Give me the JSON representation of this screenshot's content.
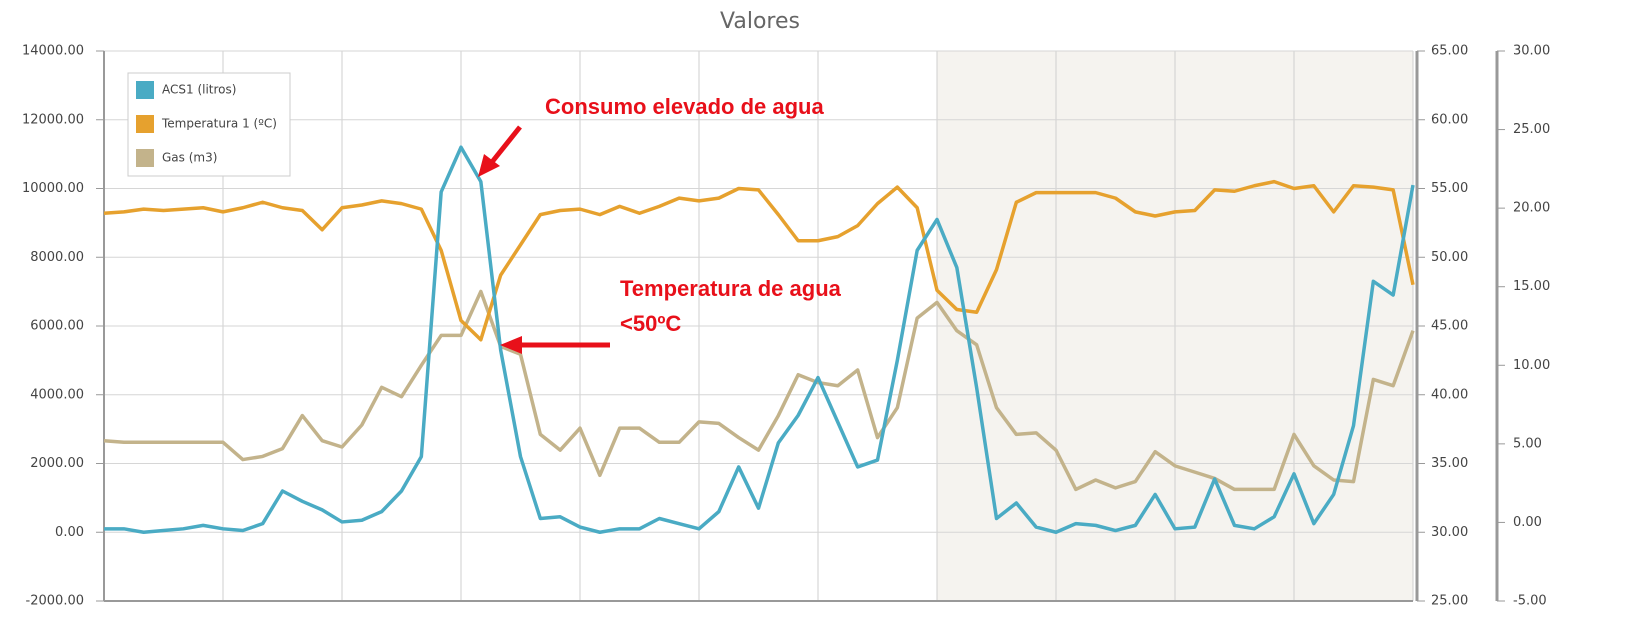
{
  "chart_data": {
    "type": "line",
    "title": "Valores",
    "legend": "top-left",
    "grid": true,
    "categories": [
      null,
      null,
      null,
      null,
      null,
      null,
      null,
      null,
      null,
      null,
      null,
      null,
      null,
      null,
      null,
      null,
      null,
      null,
      null,
      null,
      null,
      null,
      null,
      null,
      null,
      null,
      null,
      null,
      null,
      null,
      null,
      null,
      null,
      null,
      null,
      null,
      null,
      null,
      null,
      null,
      null,
      null,
      null,
      null,
      null,
      null,
      null,
      null,
      null,
      null,
      null,
      null,
      null,
      null,
      null,
      null,
      null,
      null,
      null,
      null,
      null,
      null,
      null,
      null,
      null,
      null,
      null
    ],
    "ylim": [
      -2000,
      14000
    ],
    "yticks": [
      {
        "value": 14000,
        "label": "14000.00"
      },
      {
        "value": 12000,
        "label": "12000.00"
      },
      {
        "value": 10000,
        "label": "10000.00"
      },
      {
        "value": 8000,
        "label": "8000.00"
      },
      {
        "value": 6000,
        "label": "6000.00"
      },
      {
        "value": 4000,
        "label": "4000.00"
      },
      {
        "value": 2000,
        "label": "2000.00"
      },
      {
        "value": 0,
        "label": "0.00"
      },
      {
        "value": -2000,
        "label": "-2000.00"
      }
    ],
    "y2lim": [
      25,
      65
    ],
    "y2ticks": [
      {
        "value": 65,
        "label": "65.00"
      },
      {
        "value": 60,
        "label": "60.00"
      },
      {
        "value": 55,
        "label": "55.00"
      },
      {
        "value": 50,
        "label": "50.00"
      },
      {
        "value": 45,
        "label": "45.00"
      },
      {
        "value": 40,
        "label": "40.00"
      },
      {
        "value": 35,
        "label": "35.00"
      },
      {
        "value": 30,
        "label": "30.00"
      },
      {
        "value": 25,
        "label": "25.00"
      }
    ],
    "y3lim": [
      -5,
      30
    ],
    "y3ticks": [
      {
        "value": 30,
        "label": "30.00"
      },
      {
        "value": 25,
        "label": "25.00"
      },
      {
        "value": 20,
        "label": "20.00"
      },
      {
        "value": 15,
        "label": "15.00"
      },
      {
        "value": 10,
        "label": "10.00"
      },
      {
        "value": 5,
        "label": "5.00"
      },
      {
        "value": 0,
        "label": "0.00"
      },
      {
        "value": -5,
        "label": "-5.00"
      }
    ],
    "series": [
      {
        "name": "ACS1 (litros)",
        "color": "#4aabc4",
        "axis": "y",
        "values": [
          100,
          100,
          0,
          50,
          100,
          200,
          100,
          50,
          250,
          1200,
          900,
          650,
          300,
          350,
          600,
          1200,
          2200,
          9900,
          11200,
          10200,
          5300,
          2200,
          400,
          450,
          150,
          0,
          100,
          100,
          400,
          250,
          100,
          600,
          1900,
          700,
          2600,
          3400,
          4500,
          3200,
          1900,
          2100,
          5000,
          8200,
          9100,
          7700,
          4200,
          400,
          850,
          150,
          0,
          250,
          200,
          50,
          200,
          1100,
          100,
          150,
          1550,
          200,
          100,
          450,
          1700,
          250,
          1100,
          3100,
          7300,
          6900,
          10100
        ]
      },
      {
        "name": "Temperatura 1 (ºC)",
        "color": "#e6a12e",
        "axis": "y2",
        "values": [
          53.2,
          53.3,
          53.5,
          53.4,
          53.5,
          53.6,
          53.3,
          53.6,
          54,
          53.6,
          53.4,
          52,
          53.6,
          53.8,
          54.1,
          53.9,
          53.5,
          50.5,
          45.4,
          44,
          48.7,
          50.9,
          53.1,
          53.4,
          53.5,
          53.1,
          53.7,
          53.2,
          53.7,
          54.3,
          54.1,
          54.3,
          55,
          54.9,
          53.1,
          51.2,
          51.2,
          51.5,
          52.3,
          53.9,
          55.1,
          53.6,
          47.6,
          46.2,
          46,
          49.1,
          54,
          54.7,
          54.7,
          54.7,
          54.7,
          54.3,
          53.3,
          53,
          53.3,
          53.4,
          54.9,
          54.8,
          55.2,
          55.5,
          55,
          55.2,
          53.3,
          55.2,
          55.1,
          54.9,
          48
        ]
      },
      {
        "name": "Gas (m3)",
        "color": "#c3b38b",
        "axis": "y3",
        "values": [
          5.2,
          5.1,
          5.1,
          5.1,
          5.1,
          5.1,
          5.1,
          4,
          4.2,
          4.7,
          6.8,
          5.2,
          4.8,
          6.2,
          8.6,
          8,
          10,
          11.9,
          11.9,
          14.7,
          11.2,
          10.7,
          5.6,
          4.6,
          6,
          3,
          6,
          6,
          5.1,
          5.1,
          6.4,
          6.3,
          5.4,
          4.6,
          6.8,
          9.4,
          8.9,
          8.7,
          9.7,
          5.4,
          7.3,
          13,
          14,
          12.2,
          11.3,
          7.3,
          5.6,
          5.7,
          4.6,
          2.1,
          2.7,
          2.2,
          2.6,
          4.5,
          3.6,
          3.2,
          2.8,
          2.1,
          2.1,
          2.1,
          5.6,
          3.6,
          2.7,
          2.6,
          9.1,
          8.7,
          12.2
        ]
      }
    ],
    "annotations": [
      {
        "text": "Consumo elevado de agua"
      },
      {
        "text": "Temperatura de agua"
      },
      {
        "text": "<50ºC"
      }
    ]
  }
}
